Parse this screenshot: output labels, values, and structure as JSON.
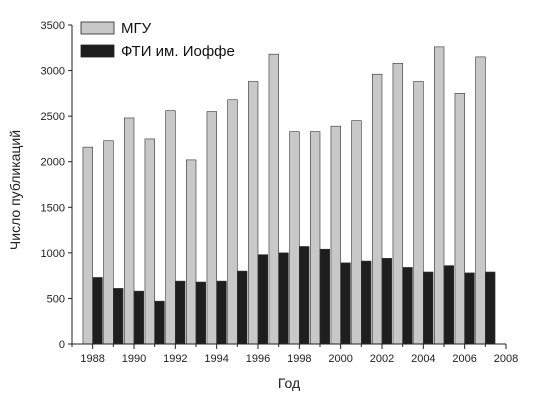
{
  "chart_data": {
    "type": "bar",
    "xlabel": "Год",
    "ylabel": "Число публикаций",
    "ylim": [
      0,
      3500
    ],
    "yticks": [
      0,
      500,
      1000,
      1500,
      2000,
      2500,
      3000,
      3500
    ],
    "xlim": [
      1987,
      2008
    ],
    "xticks": [
      1988,
      1990,
      1992,
      1994,
      1996,
      1998,
      2000,
      2002,
      2004,
      2006,
      2008
    ],
    "x": [
      1988,
      1989,
      1990,
      1991,
      1992,
      1993,
      1994,
      1995,
      1996,
      1997,
      1998,
      1999,
      2000,
      2001,
      2002,
      2003,
      2004,
      2005,
      2006,
      2007
    ],
    "legend_position": "top-left",
    "grid": false,
    "series": [
      {
        "name": "МГУ",
        "color": "#c8c8c8",
        "values": [
          2160,
          2230,
          2480,
          2250,
          2560,
          2020,
          2550,
          2680,
          2880,
          3180,
          2330,
          2330,
          2390,
          2450,
          2960,
          3080,
          2880,
          3260,
          2750,
          3150
        ]
      },
      {
        "name": "ФТИ им. Иоффе",
        "color": "#1e1e1e",
        "values": [
          730,
          610,
          580,
          470,
          690,
          680,
          690,
          800,
          980,
          1000,
          1070,
          1040,
          890,
          910,
          940,
          840,
          790,
          860,
          780,
          790
        ]
      }
    ]
  }
}
